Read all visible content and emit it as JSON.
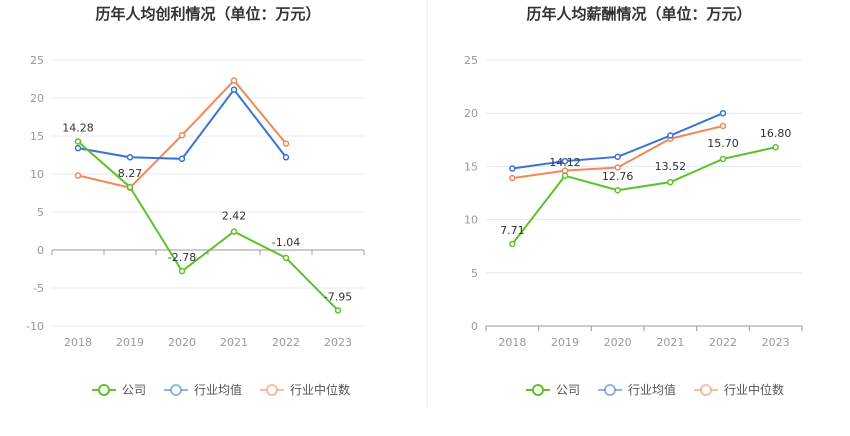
{
  "chart_data": [
    {
      "type": "line",
      "title": "历年人均创利情况（单位：万元）",
      "x": [
        "2018",
        "2019",
        "2020",
        "2021",
        "2022",
        "2023"
      ],
      "ylim": [
        -10,
        25
      ],
      "yticks": [
        -10,
        -5,
        0,
        5,
        10,
        15,
        20,
        25
      ],
      "grid": true,
      "legend_position": "bottom",
      "series": [
        {
          "name": "公司",
          "color": "#5cc22b",
          "values": [
            14.28,
            8.27,
            -2.78,
            2.42,
            -1.04,
            -7.95
          ],
          "labels": [
            "14.28",
            "8.27",
            "-2.78",
            "2.42",
            "-1.04",
            "-7.95"
          ]
        },
        {
          "name": "行业均值",
          "color": "#3a73d9",
          "values": [
            13.4,
            12.2,
            12.0,
            21.1,
            12.2,
            null
          ]
        },
        {
          "name": "行业中位数",
          "color": "#f0885a",
          "values": [
            9.8,
            8.2,
            15.1,
            22.3,
            14.0,
            null
          ]
        }
      ]
    },
    {
      "type": "line",
      "title": "历年人均薪酬情况（单位：万元）",
      "x": [
        "2018",
        "2019",
        "2020",
        "2021",
        "2022",
        "2023"
      ],
      "ylim": [
        0,
        25
      ],
      "yticks": [
        0,
        5,
        10,
        15,
        20,
        25
      ],
      "grid": true,
      "legend_position": "bottom",
      "series": [
        {
          "name": "公司",
          "color": "#5cc22b",
          "values": [
            7.71,
            14.12,
            12.76,
            13.52,
            15.7,
            16.8
          ],
          "labels": [
            "7.71",
            "14.12",
            "12.76",
            "13.52",
            "15.70",
            "16.80"
          ]
        },
        {
          "name": "行业均值",
          "color": "#3a73d9",
          "values": [
            14.8,
            15.5,
            15.9,
            17.9,
            20.0,
            null
          ]
        },
        {
          "name": "行业中位数",
          "color": "#f0885a",
          "values": [
            13.9,
            14.6,
            14.9,
            17.6,
            18.8,
            null
          ]
        }
      ]
    }
  ]
}
